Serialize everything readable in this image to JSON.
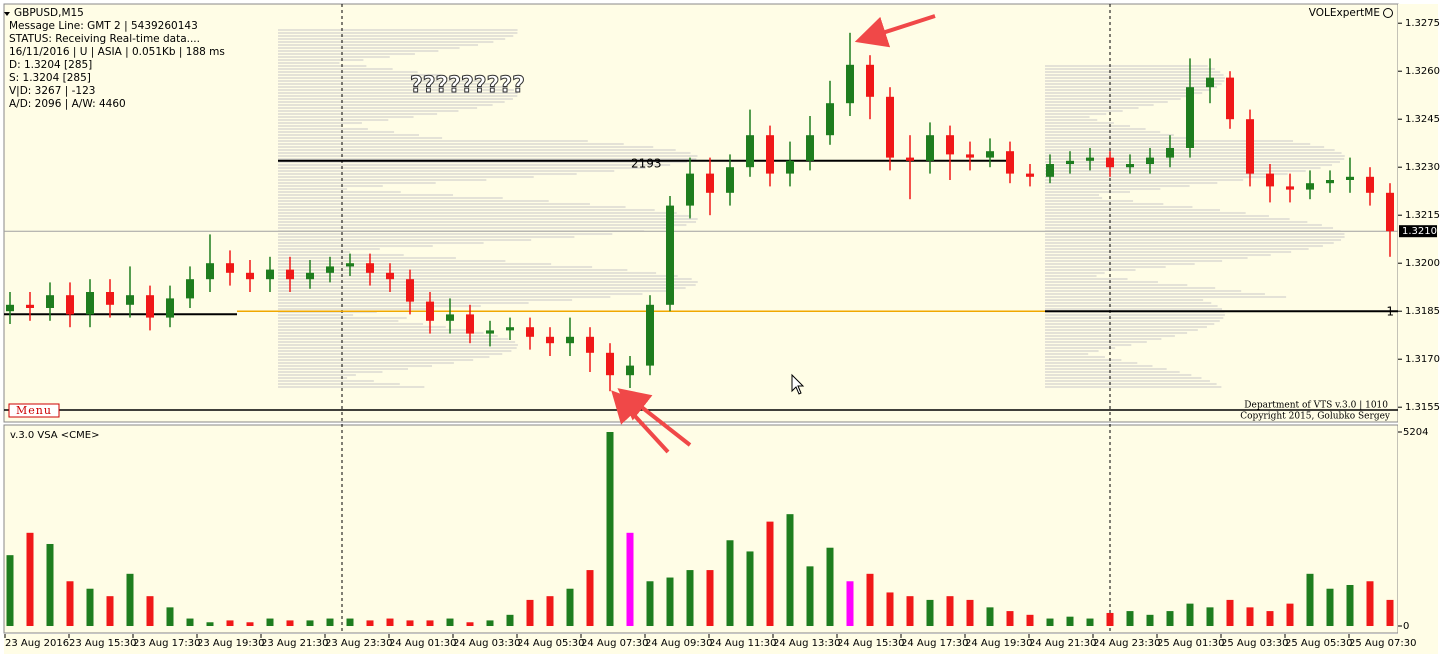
{
  "chart_data": [
    {
      "type": "candlestick",
      "symbol": "GBPUSD,M15",
      "info_lines": [
        "Message Line: GMT 2 | 5439260143",
        "STATUS:  Receiving Real-time data....",
        "16/11/2016 | U | ASIA | 0.051Kb | 188 ms",
        "D: 1.3204  [285]",
        "S: 1.3204  [285]",
        "V|D: 3267 | -123",
        "A/D: 2096 | A/W: 4460"
      ],
      "annotation": "?????????",
      "level_label": "2193",
      "indicator": "VOLExpertME",
      "menu": "Menu",
      "right_marker": "1",
      "footer": [
        "Department of VTS  v.3.0 | 1010",
        "Copyright 2015, Golubko Sergey"
      ],
      "up_color": "#1e7d1e",
      "down_color": "#f01818",
      "ylim": [
        1.3151,
        1.3281
      ],
      "yticks": [
        1.3275,
        {
          "value": 1.326,
          "label": "1.3260"
        },
        1.3245,
        {
          "value": 1.323,
          "label": "1.3230"
        },
        1.3215,
        {
          "value": 1.32,
          "label": "1.3200"
        },
        1.3185,
        {
          "value": 1.317,
          "label": "1.3170"
        },
        1.3155
      ],
      "current_price": {
        "value": 1.321,
        "label": "1.3210"
      },
      "levels": [
        {
          "value": 1.3232,
          "color": "#000000"
        },
        {
          "value": 1.3185,
          "color": "#f0a800"
        }
      ],
      "x_labels": [
        "23 Aug 2016",
        "23 Aug 15:30",
        "23 Aug 17:30",
        "23 Aug 19:30",
        "23 Aug 21:30",
        "23 Aug 23:30",
        "24 Aug 01:30",
        "24 Aug 03:30",
        "24 Aug 05:30",
        "24 Aug 07:30",
        "24 Aug 09:30",
        "24 Aug 11:30",
        "24 Aug 13:30",
        "24 Aug 15:30",
        "24 Aug 17:30",
        "24 Aug 19:30",
        "24 Aug 21:30",
        "24 Aug 23:30",
        "25 Aug 01:30",
        "25 Aug 03:30",
        "25 Aug 05:30",
        "25 Aug 07:30"
      ],
      "ohlc": [
        [
          1.3185,
          1.3191,
          1.3181,
          1.3187
        ],
        [
          1.3187,
          1.3191,
          1.3182,
          1.3186
        ],
        [
          1.3186,
          1.3194,
          1.3182,
          1.319
        ],
        [
          1.319,
          1.3194,
          1.318,
          1.3184
        ],
        [
          1.3184,
          1.3195,
          1.318,
          1.3191
        ],
        [
          1.3191,
          1.3195,
          1.3183,
          1.3187
        ],
        [
          1.3187,
          1.3199,
          1.3183,
          1.319
        ],
        [
          1.319,
          1.3193,
          1.3179,
          1.3183
        ],
        [
          1.3183,
          1.3193,
          1.318,
          1.3189
        ],
        [
          1.3189,
          1.3199,
          1.3186,
          1.3195
        ],
        [
          1.3195,
          1.3209,
          1.3191,
          1.32
        ],
        [
          1.32,
          1.3204,
          1.3193,
          1.3197
        ],
        [
          1.3197,
          1.3201,
          1.3191,
          1.3195
        ],
        [
          1.3195,
          1.3202,
          1.3191,
          1.3198
        ],
        [
          1.3198,
          1.3202,
          1.3191,
          1.3195
        ],
        [
          1.3195,
          1.3201,
          1.3192,
          1.3197
        ],
        [
          1.3197,
          1.3202,
          1.3194,
          1.3199
        ],
        [
          1.3199,
          1.3203,
          1.3196,
          1.32
        ],
        [
          1.32,
          1.3203,
          1.3193,
          1.3197
        ],
        [
          1.3197,
          1.32,
          1.3191,
          1.3195
        ],
        [
          1.3195,
          1.3198,
          1.3184,
          1.3188
        ],
        [
          1.3188,
          1.3191,
          1.3178,
          1.3182
        ],
        [
          1.3182,
          1.3189,
          1.3178,
          1.3184
        ],
        [
          1.3184,
          1.3187,
          1.3175,
          1.3178
        ],
        [
          1.3178,
          1.3182,
          1.3174,
          1.3179
        ],
        [
          1.3179,
          1.3183,
          1.3176,
          1.318
        ],
        [
          1.318,
          1.3183,
          1.3173,
          1.3177
        ],
        [
          1.3177,
          1.318,
          1.3171,
          1.3175
        ],
        [
          1.3175,
          1.3183,
          1.3171,
          1.3177
        ],
        [
          1.3177,
          1.318,
          1.3166,
          1.3172
        ],
        [
          1.3172,
          1.3175,
          1.316,
          1.3165
        ],
        [
          1.3165,
          1.3171,
          1.3161,
          1.3168
        ],
        [
          1.3168,
          1.319,
          1.3165,
          1.3187
        ],
        [
          1.3187,
          1.3221,
          1.3185,
          1.3218
        ],
        [
          1.3218,
          1.3233,
          1.3214,
          1.3228
        ],
        [
          1.3228,
          1.3233,
          1.3215,
          1.3222
        ],
        [
          1.3222,
          1.3234,
          1.3218,
          1.323
        ],
        [
          1.323,
          1.3248,
          1.3227,
          1.324
        ],
        [
          1.324,
          1.3243,
          1.3224,
          1.3228
        ],
        [
          1.3228,
          1.3238,
          1.3224,
          1.3232
        ],
        [
          1.3232,
          1.3246,
          1.3229,
          1.324
        ],
        [
          1.324,
          1.3257,
          1.3237,
          1.325
        ],
        [
          1.325,
          1.3272,
          1.3246,
          1.3262
        ],
        [
          1.3262,
          1.3265,
          1.3245,
          1.3252
        ],
        [
          1.3252,
          1.3255,
          1.3229,
          1.3233
        ],
        [
          1.3233,
          1.324,
          1.322,
          1.3232
        ],
        [
          1.3232,
          1.3244,
          1.3228,
          1.324
        ],
        [
          1.324,
          1.3243,
          1.3226,
          1.3234
        ],
        [
          1.3234,
          1.3238,
          1.3229,
          1.3233
        ],
        [
          1.3233,
          1.3239,
          1.323,
          1.3235
        ],
        [
          1.3235,
          1.3238,
          1.3225,
          1.3228
        ],
        [
          1.3228,
          1.3231,
          1.3224,
          1.3227
        ],
        [
          1.3227,
          1.3234,
          1.3225,
          1.3231
        ],
        [
          1.3231,
          1.3235,
          1.3228,
          1.3232
        ],
        [
          1.3232,
          1.3236,
          1.3229,
          1.3233
        ],
        [
          1.3233,
          1.3235,
          1.3227,
          1.323
        ],
        [
          1.323,
          1.3234,
          1.3228,
          1.3231
        ],
        [
          1.3231,
          1.3236,
          1.3228,
          1.3233
        ],
        [
          1.3233,
          1.324,
          1.323,
          1.3236
        ],
        [
          1.3236,
          1.3264,
          1.3233,
          1.3255
        ],
        [
          1.3255,
          1.3264,
          1.325,
          1.3258
        ],
        [
          1.3258,
          1.326,
          1.3242,
          1.3245
        ],
        [
          1.3245,
          1.3248,
          1.3224,
          1.3228
        ],
        [
          1.3228,
          1.3231,
          1.3219,
          1.3224
        ],
        [
          1.3224,
          1.3228,
          1.3219,
          1.3223
        ],
        [
          1.3223,
          1.3229,
          1.322,
          1.3225
        ],
        [
          1.3225,
          1.3229,
          1.3222,
          1.3226
        ],
        [
          1.3226,
          1.3233,
          1.3222,
          1.3227
        ],
        [
          1.3227,
          1.323,
          1.3218,
          1.3222
        ],
        [
          1.3222,
          1.3225,
          1.3202,
          1.321
        ]
      ]
    },
    {
      "type": "bar",
      "title": "v.3.0 VSA <CME>",
      "ylim": [
        0,
        5204
      ],
      "yticks": [
        0,
        5204
      ],
      "values": [
        1900,
        2500,
        2200,
        1200,
        1000,
        800,
        1400,
        800,
        500,
        200,
        100,
        150,
        100,
        200,
        150,
        150,
        200,
        200,
        150,
        200,
        150,
        150,
        200,
        100,
        150,
        300,
        700,
        800,
        1000,
        1500,
        5204,
        2500,
        1200,
        1300,
        1500,
        1500,
        2300,
        2000,
        2800,
        3000,
        1600,
        2100,
        1200,
        1400,
        900,
        800,
        700,
        800,
        700,
        500,
        400,
        300,
        200,
        250,
        200,
        350,
        400,
        300,
        400,
        600,
        500,
        700,
        500,
        400,
        600,
        1400,
        1000,
        1100,
        1200,
        700
      ],
      "colors": [
        "#1e7d1e",
        "#f01818",
        "#1e7d1e",
        "#f01818",
        "#1e7d1e",
        "#f01818",
        "#1e7d1e",
        "#f01818",
        "#1e7d1e",
        "#1e7d1e",
        "#1e7d1e",
        "#f01818",
        "#f01818",
        "#1e7d1e",
        "#f01818",
        "#1e7d1e",
        "#1e7d1e",
        "#1e7d1e",
        "#f01818",
        "#f01818",
        "#f01818",
        "#f01818",
        "#1e7d1e",
        "#f01818",
        "#1e7d1e",
        "#1e7d1e",
        "#f01818",
        "#f01818",
        "#1e7d1e",
        "#f01818",
        "#1e7d1e",
        "#ff00ff",
        "#1e7d1e",
        "#1e7d1e",
        "#1e7d1e",
        "#f01818",
        "#1e7d1e",
        "#1e7d1e",
        "#f01818",
        "#1e7d1e",
        "#1e7d1e",
        "#1e7d1e",
        "#ff00ff",
        "#f01818",
        "#f01818",
        "#f01818",
        "#1e7d1e",
        "#f01818",
        "#f01818",
        "#1e7d1e",
        "#f01818",
        "#f01818",
        "#1e7d1e",
        "#1e7d1e",
        "#1e7d1e",
        "#f01818",
        "#1e7d1e",
        "#1e7d1e",
        "#1e7d1e",
        "#1e7d1e",
        "#1e7d1e",
        "#f01818",
        "#f01818",
        "#f01818",
        "#f01818",
        "#1e7d1e",
        "#1e7d1e",
        "#1e7d1e",
        "#f01818",
        "#f01818"
      ]
    }
  ]
}
